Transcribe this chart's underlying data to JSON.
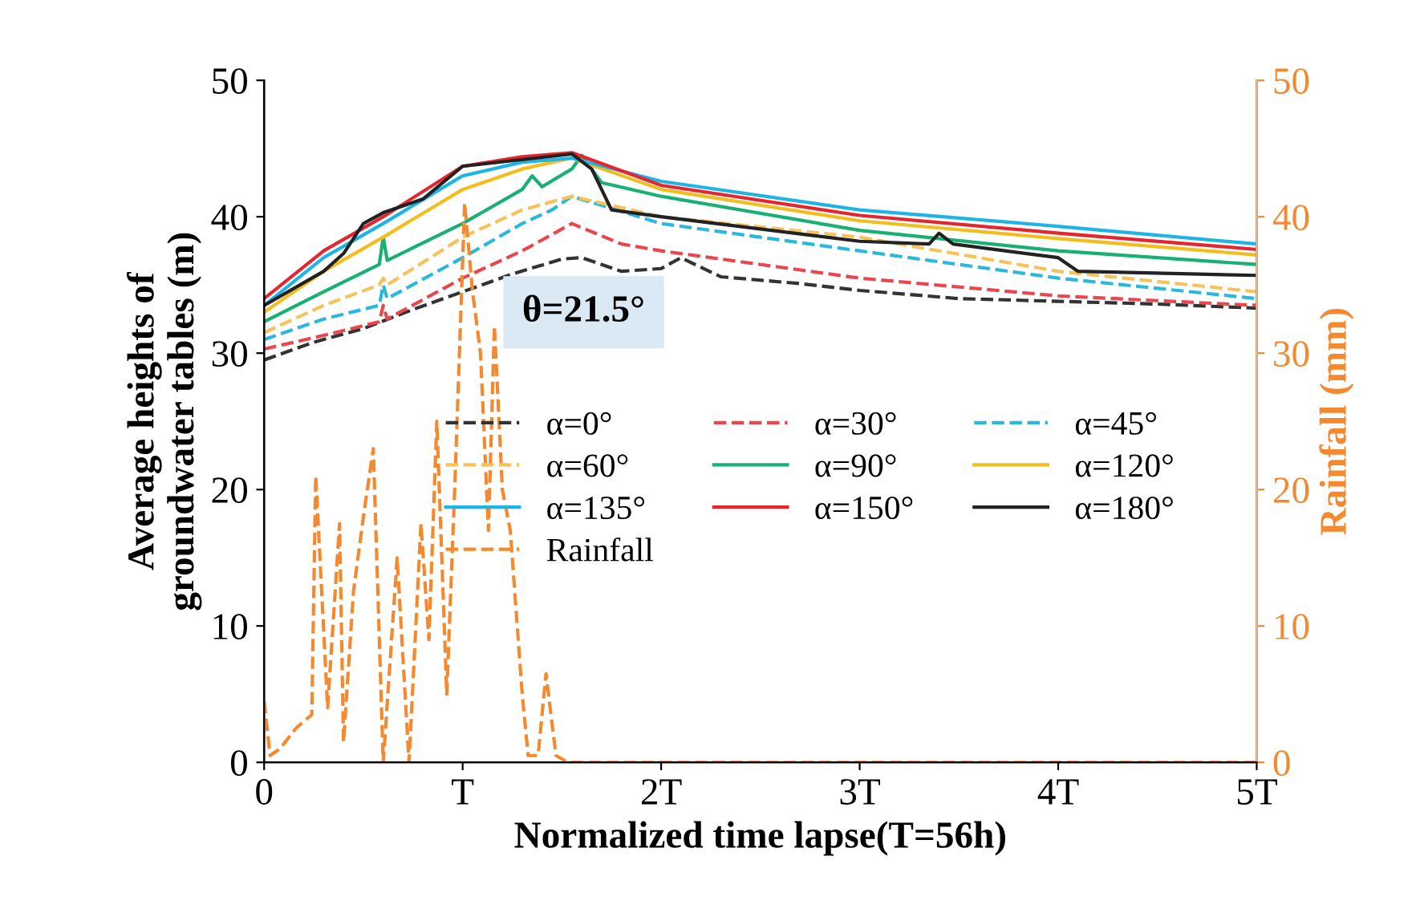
{
  "chart_data": {
    "type": "line",
    "xlabel": "Normalized time lapse(T=56h)",
    "ylabel": "Average heights of\ngroundwater tables (m)",
    "y2label": "Rainfall (mm)",
    "annotations": [
      "θ=21.5°"
    ],
    "xlim": [
      0,
      5
    ],
    "xticks": [
      0,
      {
        "value": 1,
        "label": "T"
      },
      {
        "value": 2,
        "label": "2T"
      },
      {
        "value": 3,
        "label": "3T"
      },
      {
        "value": 4,
        "label": "4T"
      },
      {
        "value": 5,
        "label": "5T"
      }
    ],
    "ylim": [
      0,
      50
    ],
    "yticks": [
      0,
      10,
      20,
      30,
      40,
      50
    ],
    "y2lim": [
      0,
      50
    ],
    "y2ticks": [
      0,
      10,
      20,
      30,
      40,
      50
    ],
    "grid": false,
    "legend": "center",
    "marker": "none",
    "series": [
      {
        "name": "α=0°",
        "color": "#333333",
        "line_style": "dashed",
        "x": [
          0,
          0.25,
          0.5,
          0.75,
          1,
          1.25,
          1.5,
          1.6,
          1.8,
          2.0,
          2.1,
          2.3,
          2.7,
          3,
          3.5,
          4,
          4.5,
          5
        ],
        "values": [
          29.5,
          30.8,
          31.8,
          33.2,
          34.5,
          35.8,
          36.9,
          37.0,
          36.0,
          36.2,
          37.0,
          35.6,
          35.1,
          34.6,
          34.0,
          33.8,
          33.6,
          33.3
        ]
      },
      {
        "name": "α=30°",
        "color": "#e8474d",
        "line_style": "dashed",
        "x": [
          0,
          0.3,
          0.58,
          0.6,
          0.62,
          1.0,
          1.3,
          1.55,
          1.8,
          2.0,
          3,
          4,
          5
        ],
        "values": [
          30.3,
          31.3,
          32.3,
          33.5,
          32.5,
          35.5,
          37.5,
          39.5,
          38.0,
          37.5,
          35.5,
          34.2,
          33.5
        ]
      },
      {
        "name": "α=45°",
        "color": "#2cb7dc",
        "line_style": "dashed",
        "x": [
          0,
          0.3,
          0.58,
          0.6,
          0.62,
          1.0,
          1.3,
          1.45,
          1.55,
          2.0,
          3,
          4,
          5
        ],
        "values": [
          31.0,
          32.5,
          33.5,
          35.0,
          34.0,
          37.0,
          39.5,
          40.5,
          41.5,
          39.5,
          37.5,
          35.5,
          34.0
        ]
      },
      {
        "name": "α=60°",
        "color": "#f5c35a",
        "line_style": "dashed",
        "x": [
          0,
          0.3,
          0.58,
          0.6,
          0.62,
          1.0,
          1.3,
          1.55,
          2.0,
          3,
          4,
          5
        ],
        "values": [
          31.5,
          33.5,
          35.0,
          35.5,
          35.0,
          38.5,
          40.5,
          41.5,
          40.0,
          38.5,
          36.0,
          34.5
        ]
      },
      {
        "name": "α=90°",
        "color": "#19b074",
        "line_style": "solid",
        "x": [
          0,
          0.3,
          0.58,
          0.6,
          0.62,
          1.0,
          1.3,
          1.35,
          1.4,
          1.55,
          1.6,
          1.7,
          2.0,
          3,
          4,
          5
        ],
        "values": [
          32.3,
          34.5,
          36.5,
          38.5,
          36.8,
          39.5,
          42.0,
          43.0,
          42.2,
          43.5,
          44.5,
          42.5,
          41.5,
          39.0,
          37.5,
          36.5
        ]
      },
      {
        "name": "α=120°",
        "color": "#f2bd1d",
        "line_style": "solid",
        "x": [
          0,
          0.3,
          0.6,
          1.0,
          1.3,
          1.55,
          2.0,
          3,
          4,
          5
        ],
        "values": [
          33.0,
          36.0,
          38.5,
          42.0,
          43.5,
          44.3,
          42.0,
          39.7,
          38.4,
          37.2
        ]
      },
      {
        "name": "α=135°",
        "color": "#1fb4e6",
        "line_style": "solid",
        "x": [
          0,
          0.3,
          0.6,
          1.0,
          1.3,
          1.55,
          2.0,
          3,
          4,
          5
        ],
        "values": [
          33.5,
          37.0,
          39.5,
          43.0,
          44.0,
          44.3,
          42.6,
          40.5,
          39.3,
          38.0
        ]
      },
      {
        "name": "α=150°",
        "color": "#e5262f",
        "line_style": "solid",
        "x": [
          0,
          0.3,
          0.6,
          1.0,
          1.3,
          1.55,
          2.0,
          3,
          4,
          5
        ],
        "values": [
          34.0,
          37.5,
          40.0,
          43.7,
          44.4,
          44.7,
          42.3,
          40.1,
          38.8,
          37.6
        ]
      },
      {
        "name": "α=180°",
        "color": "#222222",
        "line_style": "solid",
        "x": [
          0,
          0.3,
          0.4,
          0.5,
          0.6,
          0.8,
          1.0,
          1.55,
          1.65,
          1.75,
          2.0,
          3,
          3.35,
          3.4,
          3.47,
          4,
          4.1,
          5
        ],
        "values": [
          33.5,
          36.0,
          37.3,
          39.5,
          40.3,
          41.3,
          43.7,
          44.6,
          43.5,
          40.5,
          40.0,
          38.2,
          38.0,
          38.8,
          38.0,
          37.0,
          36.0,
          35.7
        ]
      },
      {
        "name": "Rainfall",
        "color": "#f4892f",
        "line_style": "dashed",
        "axis": "y2",
        "x": [
          0,
          0.03,
          0.08,
          0.16,
          0.24,
          0.26,
          0.32,
          0.38,
          0.4,
          0.45,
          0.5,
          0.55,
          0.6,
          0.67,
          0.73,
          0.79,
          0.83,
          0.87,
          0.92,
          0.96,
          1.01,
          1.05,
          1.09,
          1.13,
          1.16,
          1.2,
          1.24,
          1.3,
          1.33,
          1.38,
          1.42,
          1.47,
          1.53,
          1.6,
          2,
          3,
          4,
          5
        ],
        "values": [
          4.5,
          0.5,
          1.0,
          2.5,
          3.5,
          21.0,
          4.0,
          17.5,
          1.5,
          12.5,
          18.0,
          23.0,
          0.0,
          15.0,
          0.0,
          17.5,
          9.0,
          25.0,
          5.0,
          20.0,
          41.0,
          34.5,
          30.0,
          17.0,
          32.0,
          20.0,
          17.0,
          5.0,
          0.5,
          0.5,
          6.5,
          0.5,
          0.0,
          0.0,
          0.0,
          0.0,
          0.0,
          0.0
        ]
      }
    ]
  }
}
